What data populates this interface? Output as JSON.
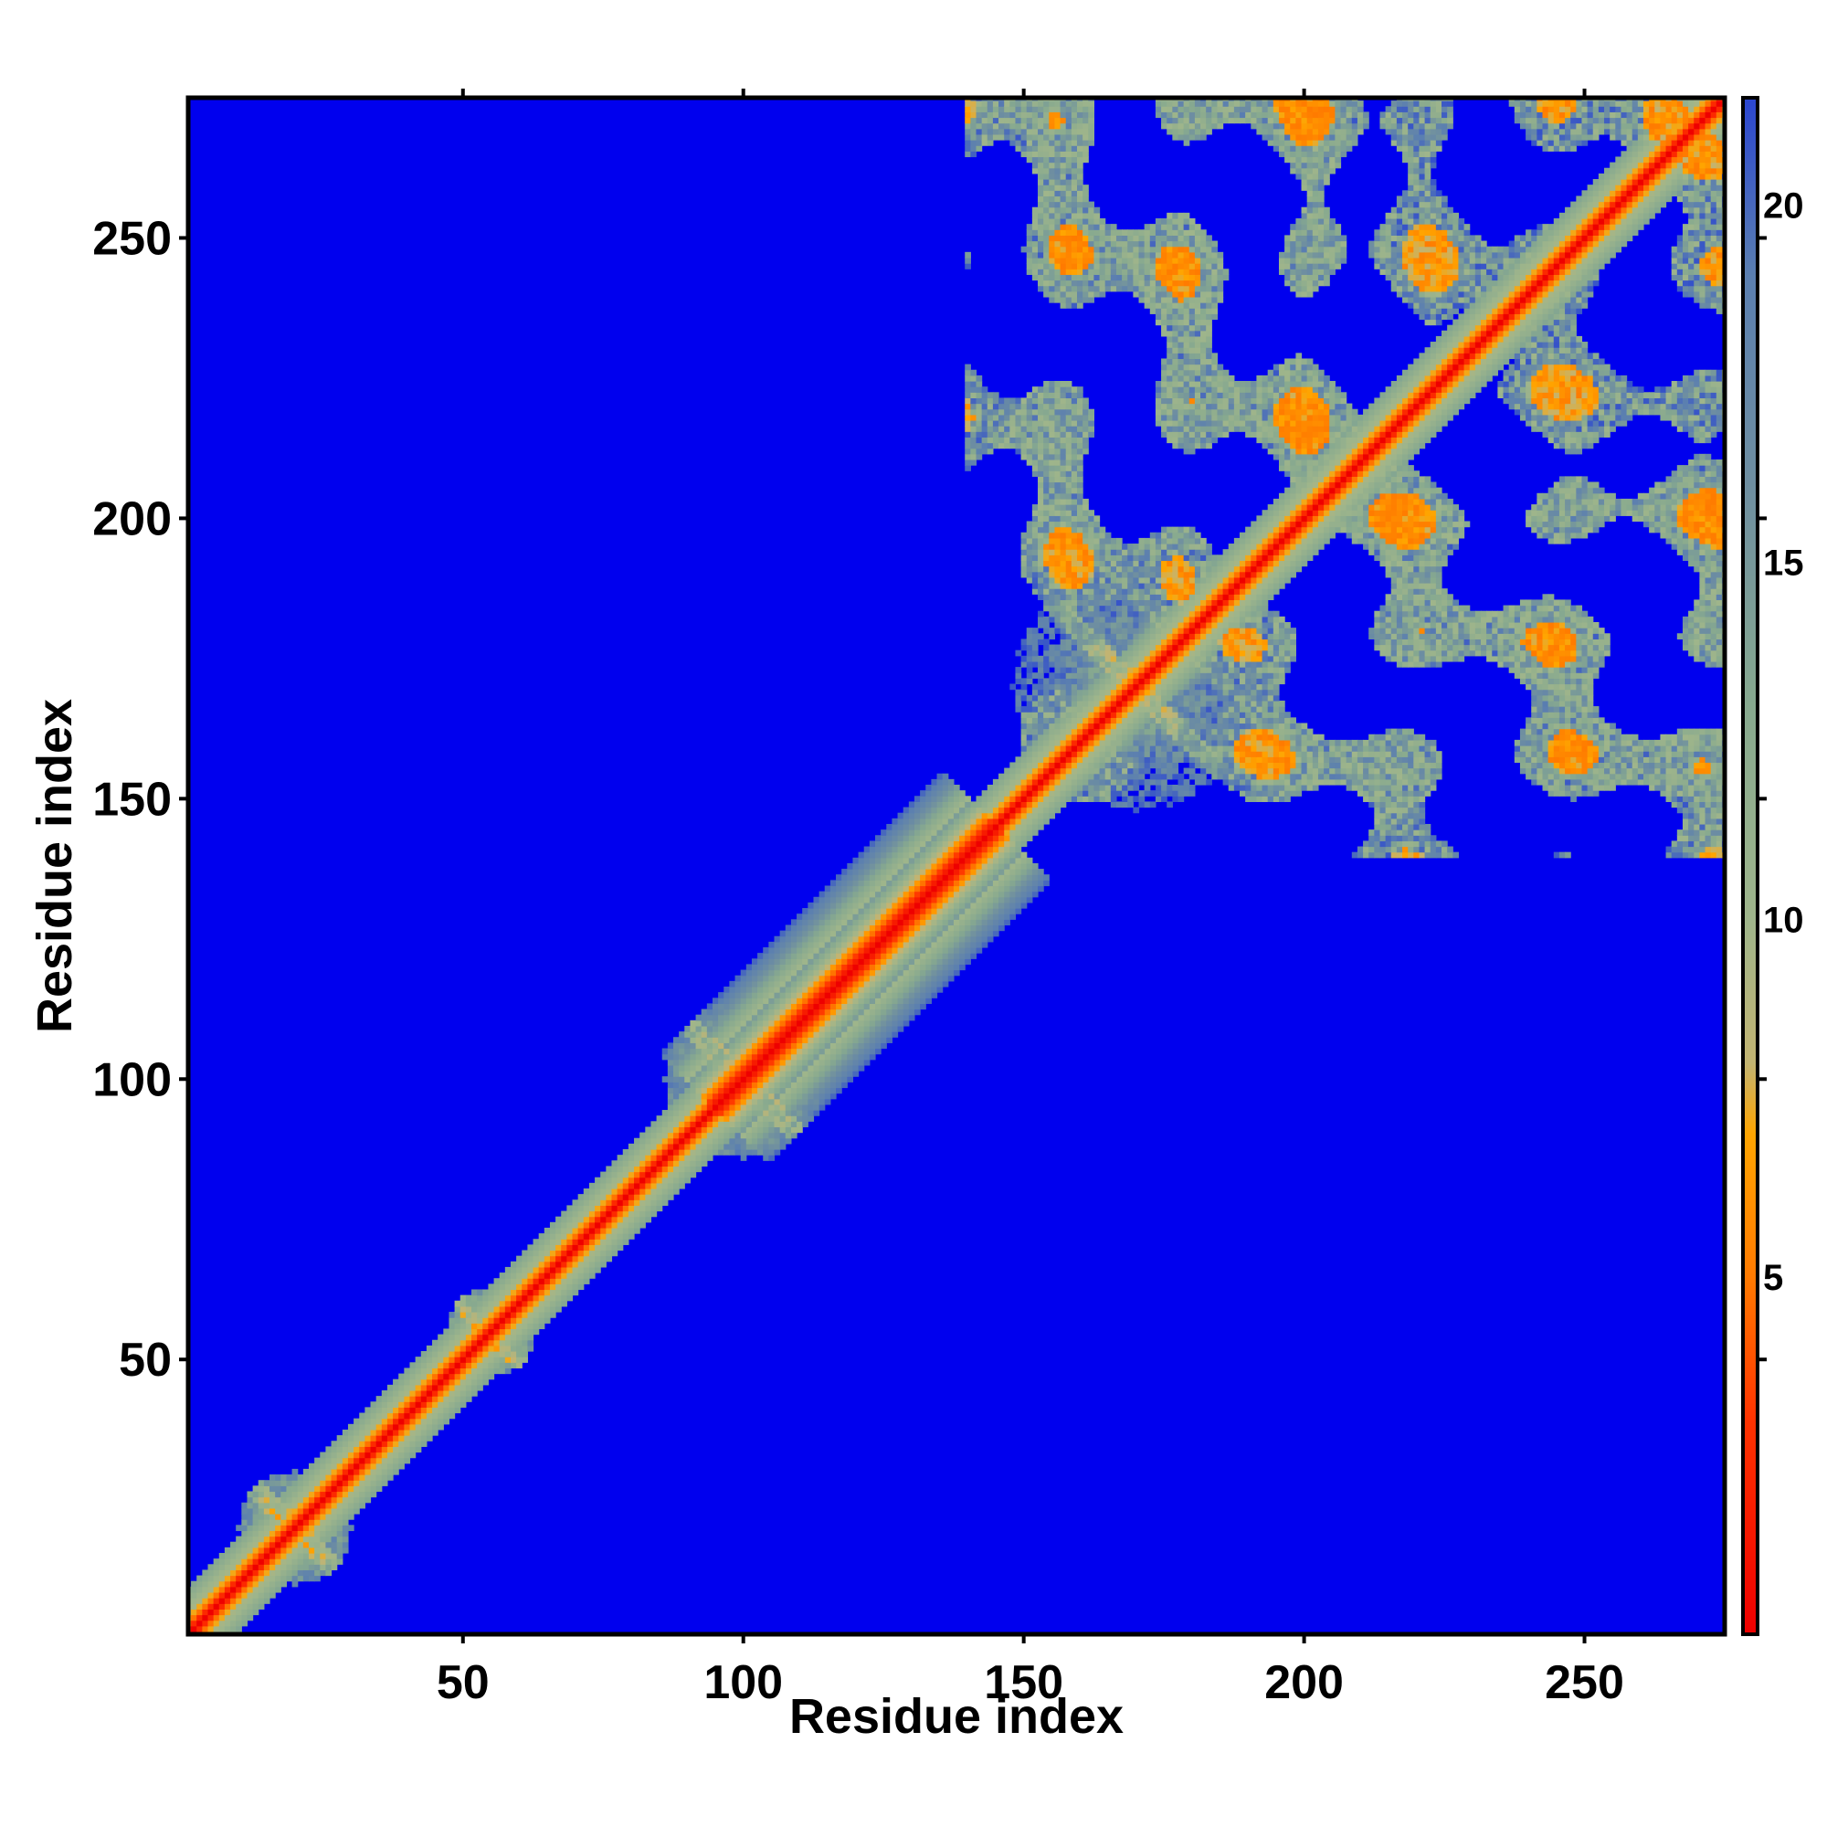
{
  "chart_data": {
    "type": "heatmap",
    "title": "",
    "xlabel": "Residue index",
    "ylabel": "Residue index",
    "n_residues": 275,
    "xlim": [
      1,
      275
    ],
    "ylim": [
      1,
      275
    ],
    "x_ticks": [
      50,
      100,
      150,
      200,
      250
    ],
    "x_tick_labels": [
      "50",
      "100",
      "150",
      "200",
      "250"
    ],
    "y_ticks": [
      50,
      100,
      150,
      200,
      250
    ],
    "y_tick_labels": [
      "50",
      "100",
      "150",
      "200",
      "250"
    ],
    "colorbar": {
      "ticks": [
        5,
        10,
        15,
        20
      ],
      "tick_labels": [
        "5",
        "10",
        "15",
        "20"
      ],
      "range": [
        0,
        21.5
      ],
      "stops": [
        {
          "value": 0,
          "color": "#ee0000"
        },
        {
          "value": 3,
          "color": "#ff3300"
        },
        {
          "value": 5,
          "color": "#ff7a00"
        },
        {
          "value": 7,
          "color": "#ffa500"
        },
        {
          "value": 8,
          "color": "#c2b472"
        },
        {
          "value": 10,
          "color": "#9fb58b"
        },
        {
          "value": 13,
          "color": "#87a98f"
        },
        {
          "value": 16,
          "color": "#6f8fa0"
        },
        {
          "value": 19,
          "color": "#5b7fb0"
        },
        {
          "value": 21.5,
          "color": "#2b46d0"
        }
      ]
    },
    "background_color": "#0000ee",
    "diagonal_color": "#ee0000",
    "grid": false,
    "legend": "colorbar-right",
    "description_regions": [
      {
        "kind": "diagonal-band",
        "from": 1,
        "to": 275,
        "halfwidth": 4
      },
      {
        "kind": "diagonal-band",
        "from": 95,
        "to": 145,
        "halfwidth": 9
      },
      {
        "kind": "cluster",
        "center": [
          100,
          100
        ],
        "radius": 14
      },
      {
        "kind": "cluster",
        "center": [
          170,
          170
        ],
        "radius": 22
      },
      {
        "kind": "cluster",
        "center": [
          55,
          55
        ],
        "radius": 8
      },
      {
        "kind": "cluster",
        "center": [
          20,
          20
        ],
        "radius": 10
      },
      {
        "kind": "block",
        "x": [
          140,
          275
        ],
        "y": [
          150,
          275
        ]
      },
      {
        "kind": "block",
        "x": [
          195,
          275
        ],
        "y": [
          140,
          215
        ]
      }
    ]
  }
}
